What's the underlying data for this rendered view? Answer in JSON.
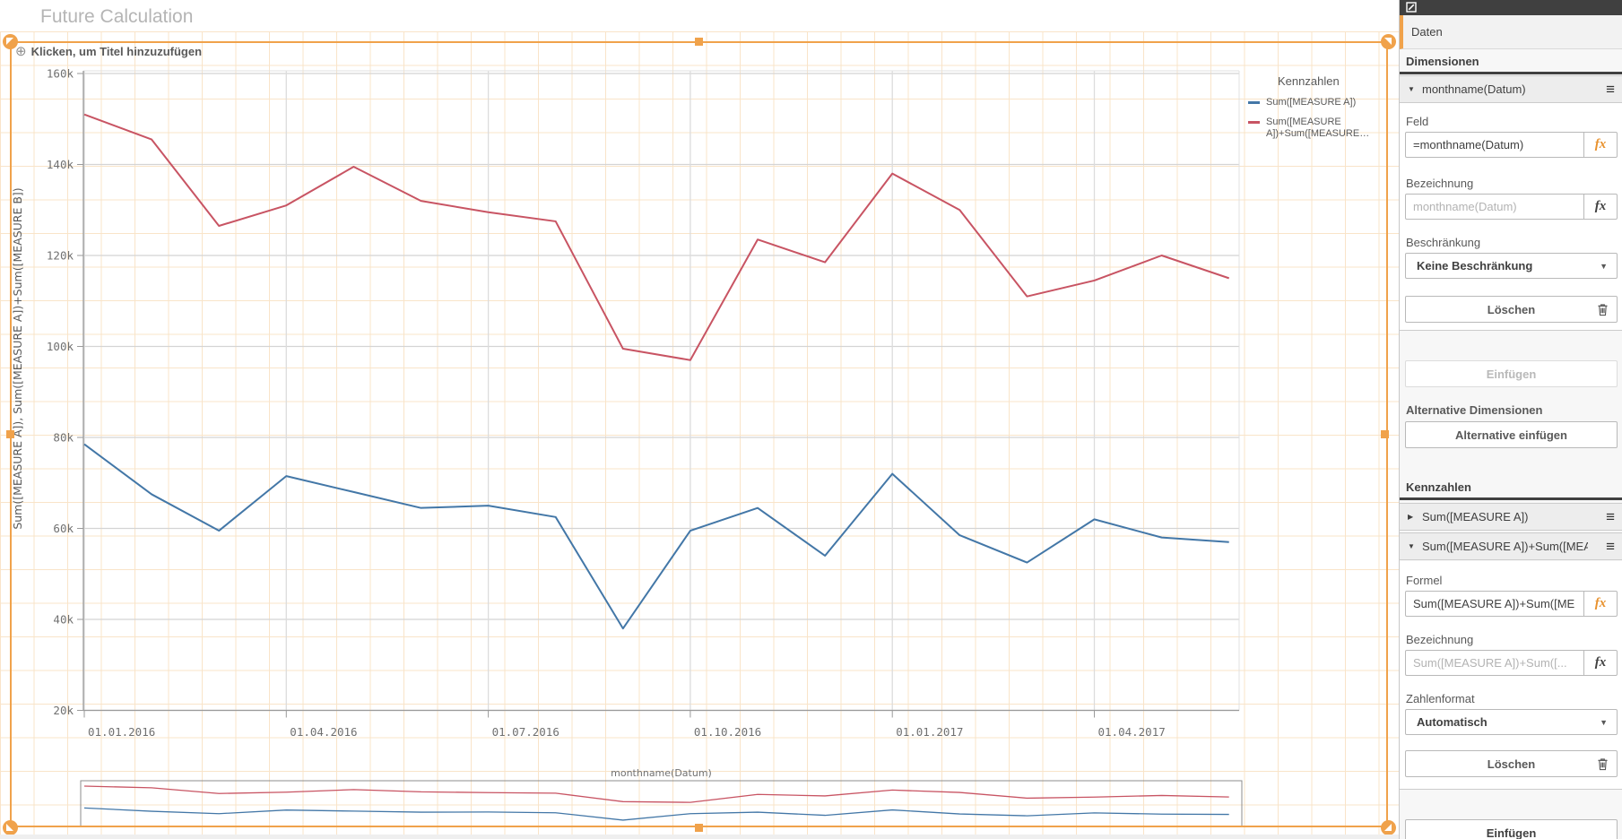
{
  "app": {
    "title": "Future Calculation"
  },
  "chart": {
    "title_placeholder": "Klicken, um Titel hinzuzufügen",
    "legend": {
      "title": "Kennzahlen",
      "items": [
        {
          "label": "Sum([MEASURE A])",
          "color": "#4377a7"
        },
        {
          "label": "Sum([MEASURE A])+Sum([MEASURE…",
          "color": "#c85463"
        }
      ]
    }
  },
  "chart_data": {
    "type": "line",
    "x": [
      "2016-01",
      "2016-02",
      "2016-03",
      "2016-04",
      "2016-05",
      "2016-06",
      "2016-07",
      "2016-08",
      "2016-09",
      "2016-10",
      "2016-11",
      "2016-12",
      "2017-01",
      "2017-02",
      "2017-03",
      "2017-04",
      "2017-05",
      "2017-06"
    ],
    "x_tick_labels": [
      {
        "index": 0,
        "label": "01.01.2016"
      },
      {
        "index": 3,
        "label": "01.04.2016"
      },
      {
        "index": 6,
        "label": "01.07.2016"
      },
      {
        "index": 9,
        "label": "01.10.2016"
      },
      {
        "index": 12,
        "label": "01.01.2017"
      },
      {
        "index": 15,
        "label": "01.04.2017"
      }
    ],
    "ylabel": "Sum([MEASURE A]), Sum([MEASURE A])+Sum([MEASURE B])",
    "mini_axis_label": "monthname(Datum)",
    "ylim": [
      20000,
      160000
    ],
    "ytick_step": 20000,
    "ytick_suffix": "k",
    "grid": true,
    "legend_position": "right",
    "series": [
      {
        "name": "Sum([MEASURE A])",
        "color": "#4377a7",
        "values": [
          78500,
          67500,
          59500,
          71500,
          68000,
          64500,
          65000,
          62500,
          38000,
          59500,
          64500,
          54000,
          72000,
          58500,
          52500,
          62000,
          58000,
          57000
        ]
      },
      {
        "name": "Sum([MEASURE A])+Sum([MEASURE B])",
        "color": "#c85463",
        "values": [
          151000,
          145500,
          126500,
          131000,
          139500,
          132000,
          129500,
          127500,
          99500,
          97000,
          123500,
          118500,
          138000,
          130000,
          111000,
          114500,
          120000,
          115000
        ]
      }
    ]
  },
  "panel": {
    "tab_label": "Daten",
    "dimensions": {
      "header": "Dimensionen",
      "item_label": "monthname(Datum)",
      "feld_label": "Feld",
      "feld_value": "=monthname(Datum)",
      "bezeichnung_label": "Bezeichnung",
      "bezeichnung_placeholder": "monthname(Datum)",
      "beschraenkung_label": "Beschränkung",
      "beschraenkung_value": "Keine Beschränkung",
      "loeschen_label": "Löschen",
      "einfuegen_label": "Einfügen",
      "alt_header": "Alternative Dimensionen",
      "alt_button_label": "Alternative einfügen"
    },
    "measures": {
      "header": "Kennzahlen",
      "item1_label": "Sum([MEASURE A])",
      "item2_label": "Sum([MEASURE A])+Sum([MEA...",
      "formel_label": "Formel",
      "formel_value": "Sum([MEASURE A])+Sum([ME",
      "bezeichnung_label": "Bezeichnung",
      "bezeichnung_placeholder": "Sum([MEASURE A])+Sum([...",
      "zahlenformat_label": "Zahlenformat",
      "zahlenformat_value": "Automatisch",
      "loeschen_label": "Löschen",
      "einfuegen_label": "Einfügen"
    }
  },
  "colors": {
    "accent_orange": "#f0a24b",
    "series_blue": "#4377a7",
    "series_red": "#c85463"
  }
}
